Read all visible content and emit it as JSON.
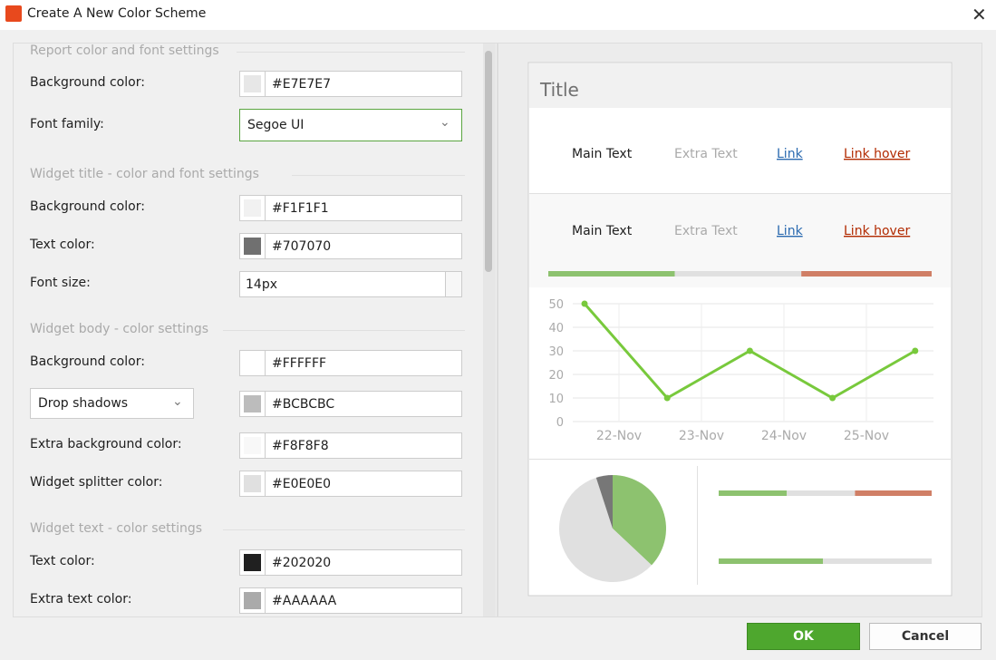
{
  "window": {
    "title": "Create A New Color Scheme"
  },
  "settings": {
    "sections": [
      {
        "heading": "Report color and font settings",
        "fields": [
          {
            "kind": "color",
            "label": "Background color:",
            "value": "#E7E7E7"
          },
          {
            "kind": "select",
            "label": "Font family:",
            "value": "Segoe UI"
          }
        ]
      },
      {
        "heading": "Widget title - color and font settings",
        "fields": [
          {
            "kind": "color",
            "label": "Background color:",
            "value": "#F1F1F1"
          },
          {
            "kind": "color",
            "label": "Text color:",
            "value": "#707070"
          },
          {
            "kind": "spin",
            "label": "Font size:",
            "value": "14px"
          }
        ]
      },
      {
        "heading": "Widget body - color settings",
        "fields": [
          {
            "kind": "color",
            "label": "Background color:",
            "value": "#FFFFFF"
          },
          {
            "kind": "color-dropdown",
            "label": "Drop shadows",
            "value": "#BCBCBC"
          },
          {
            "kind": "color",
            "label": "Extra background color:",
            "value": "#F8F8F8"
          },
          {
            "kind": "color",
            "label": "Widget splitter color:",
            "value": "#E0E0E0"
          }
        ]
      },
      {
        "heading": "Widget text - color settings",
        "fields": [
          {
            "kind": "color",
            "label": "Text color:",
            "value": "#202020"
          },
          {
            "kind": "color",
            "label": "Extra text color:",
            "value": "#AAAAAA"
          }
        ]
      }
    ]
  },
  "preview": {
    "title": "Title",
    "text_rows": [
      [
        "Main Text",
        "Extra Text",
        "Link",
        "Link hover"
      ],
      [
        "Main Text",
        "Extra Text",
        "Link",
        "Link hover"
      ]
    ],
    "progress_bar": {
      "values": [
        33,
        33,
        34
      ],
      "colors": [
        "#8dc26f",
        "#e0e0e0",
        "#d07f66"
      ]
    },
    "line_chart": {
      "x_labels": [
        "22-Nov",
        "23-Nov",
        "24-Nov",
        "25-Nov"
      ],
      "values": [
        50,
        10,
        30,
        10,
        30
      ],
      "color": "#78c93c",
      "ylim": [
        0,
        50
      ],
      "yticks": [
        0,
        10,
        20,
        30,
        40,
        50
      ]
    },
    "pie": {
      "values": [
        37,
        58,
        5
      ],
      "colors": [
        "#8dc26f",
        "#e0e0e0",
        "#777777"
      ]
    },
    "mini_bars": [
      {
        "values": [
          32,
          32,
          36
        ],
        "colors": [
          "#8dc26f",
          "#e0e0e0",
          "#d07f66"
        ]
      },
      {
        "values": [
          49,
          51
        ],
        "colors": [
          "#8dc26f",
          "#e0e0e0"
        ]
      }
    ]
  },
  "buttons": {
    "ok": "OK",
    "cancel": "Cancel"
  }
}
